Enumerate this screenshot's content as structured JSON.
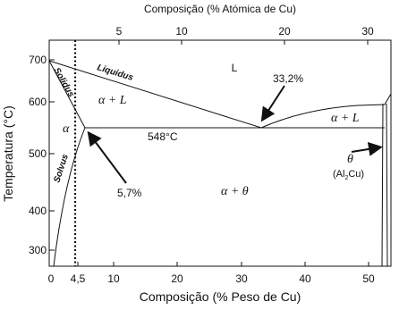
{
  "axes": {
    "top_title": "Composição (% Atómica de Cu)",
    "bottom_title": "Composição (% Peso de Cu)",
    "left_title": "Temperatura (°C)",
    "top_ticks": [
      "5",
      "10",
      "20",
      "30"
    ],
    "bottom_ticks": [
      "0",
      "4,5",
      "10",
      "20",
      "30",
      "40",
      "50"
    ],
    "left_ticks": [
      "700",
      "600",
      "500",
      "400",
      "300"
    ]
  },
  "labels": {
    "liquid": "L",
    "eutectic_comp": "33,2%",
    "alpha_l_left": "α + L",
    "alpha_l_right": "α + L",
    "alpha": "α",
    "eutectic_temp": "548°C",
    "solidus": "Solidus",
    "liquidus": "Liquidus",
    "solvus": "Solvus",
    "max_solubility": "5,7%",
    "alpha_theta": "α + θ"
  },
  "theta": {
    "symbol": "θ",
    "formula": [
      "(Al",
      "2",
      "Cu)"
    ]
  }
}
